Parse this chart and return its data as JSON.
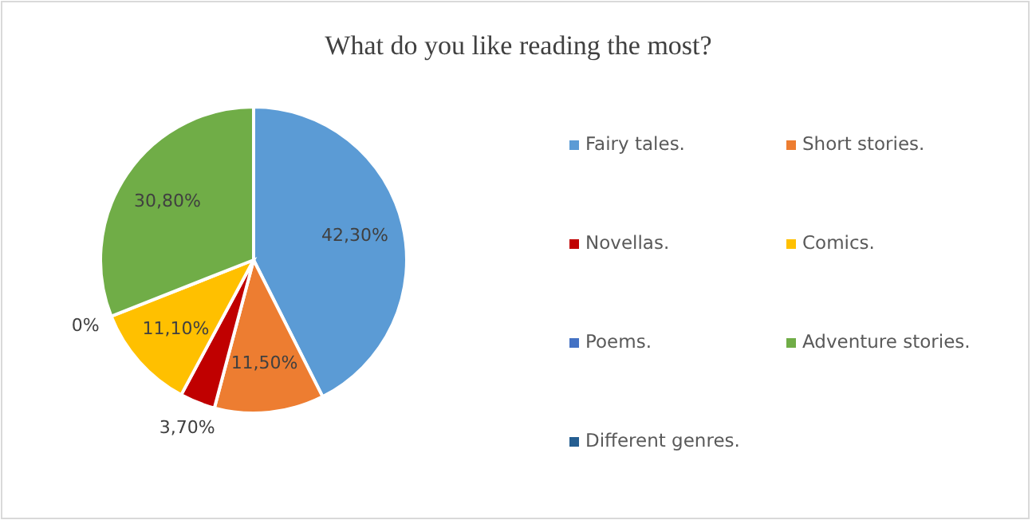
{
  "chart_data": {
    "type": "pie",
    "title": "What do you like reading the most?",
    "categories": [
      "Fairy tales.",
      "Short stories.",
      "Novellas.",
      "Comics.",
      "Poems.",
      "Adventure stories.",
      "Different genres."
    ],
    "values": [
      42.3,
      11.5,
      3.7,
      11.1,
      0,
      30.8,
      null
    ],
    "value_labels": [
      "42,30%",
      "11,50%",
      "3,70%",
      "11,10%",
      "0%",
      "30,80%",
      null
    ],
    "colors": [
      "#5b9bd5",
      "#ed7d31",
      "#c00000",
      "#ffc000",
      "#4472c4",
      "#70ad47",
      "#255e91"
    ],
    "legend": "right"
  }
}
